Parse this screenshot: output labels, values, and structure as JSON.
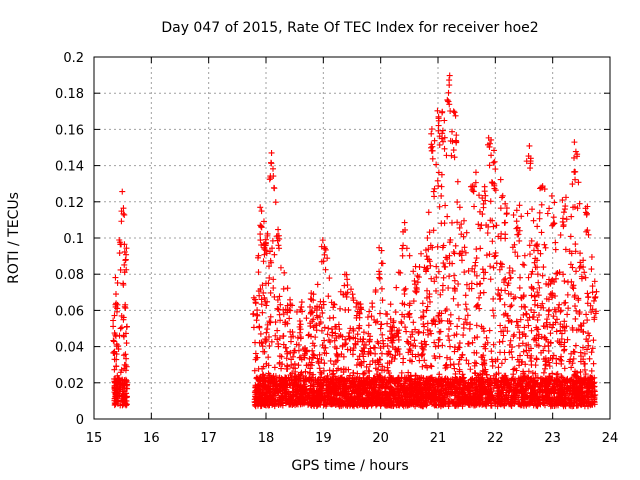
{
  "chart_data": {
    "type": "scatter",
    "title": "Day 047 of 2015, Rate Of TEC Index for receiver hoe2",
    "xlabel": "GPS time / hours",
    "ylabel": "ROTI / TECUs",
    "xlim": [
      15,
      24
    ],
    "ylim": [
      0,
      0.2
    ],
    "xticks": [
      "15",
      "16",
      "17",
      "18",
      "19",
      "20",
      "21",
      "22",
      "23",
      "24"
    ],
    "yticks": [
      "0",
      "0.02",
      "0.04",
      "0.06",
      "0.08",
      "0.1",
      "0.12",
      "0.14",
      "0.16",
      "0.18",
      "0.2"
    ],
    "grid": true,
    "marker": "+",
    "color": "#ff0000",
    "segments": [
      {
        "x_start": 15.35,
        "x_end": 15.58
      },
      {
        "x_start": 17.8,
        "x_end": 23.75
      }
    ],
    "envelope": [
      [
        15.35,
        0.055
      ],
      [
        15.4,
        0.08
      ],
      [
        15.45,
        0.1
      ],
      [
        15.5,
        0.127
      ],
      [
        15.55,
        0.095
      ],
      [
        17.8,
        0.07
      ],
      [
        17.9,
        0.118
      ],
      [
        18.0,
        0.105
      ],
      [
        18.1,
        0.15
      ],
      [
        18.2,
        0.11
      ],
      [
        18.4,
        0.07
      ],
      [
        18.6,
        0.065
      ],
      [
        18.8,
        0.07
      ],
      [
        19.0,
        0.105
      ],
      [
        19.2,
        0.065
      ],
      [
        19.4,
        0.08
      ],
      [
        19.6,
        0.065
      ],
      [
        19.8,
        0.06
      ],
      [
        20.0,
        0.095
      ],
      [
        20.2,
        0.06
      ],
      [
        20.4,
        0.11
      ],
      [
        20.6,
        0.085
      ],
      [
        20.8,
        0.1
      ],
      [
        20.9,
        0.165
      ],
      [
        21.0,
        0.175
      ],
      [
        21.1,
        0.17
      ],
      [
        21.2,
        0.19
      ],
      [
        21.3,
        0.17
      ],
      [
        21.4,
        0.11
      ],
      [
        21.6,
        0.145
      ],
      [
        21.8,
        0.13
      ],
      [
        21.9,
        0.16
      ],
      [
        22.0,
        0.145
      ],
      [
        22.2,
        0.12
      ],
      [
        22.4,
        0.12
      ],
      [
        22.6,
        0.155
      ],
      [
        22.7,
        0.1
      ],
      [
        22.8,
        0.13
      ],
      [
        23.0,
        0.125
      ],
      [
        23.2,
        0.125
      ],
      [
        23.4,
        0.155
      ],
      [
        23.6,
        0.12
      ],
      [
        23.75,
        0.075
      ]
    ],
    "baseline": 0.015
  }
}
